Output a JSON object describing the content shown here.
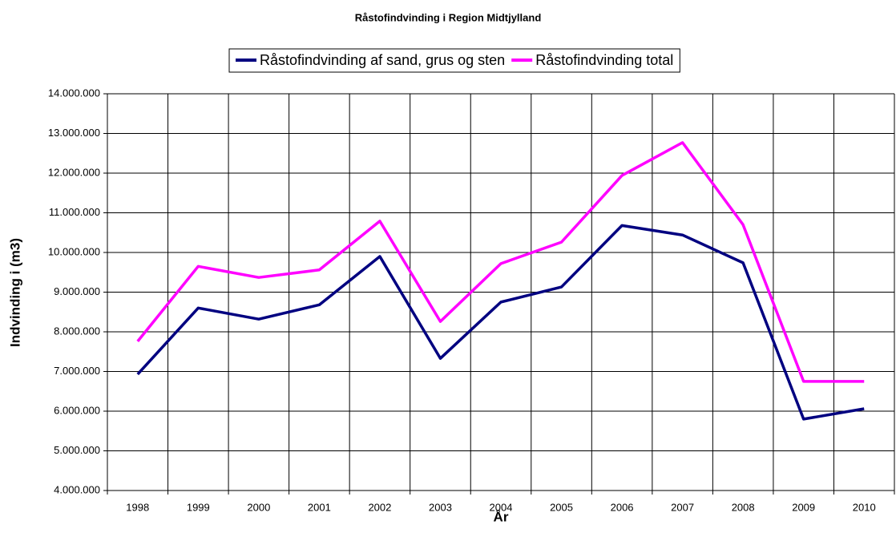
{
  "chart_data": {
    "type": "line",
    "title": "Råstofindvinding  i Region Midtjylland",
    "x_label": "År",
    "y_label": "Indvinding i (m3)",
    "categories": [
      "1998",
      "1999",
      "2000",
      "2001",
      "2002",
      "2003",
      "2004",
      "2005",
      "2006",
      "2007",
      "2008",
      "2009",
      "2010"
    ],
    "series": [
      {
        "name": "Råstofindvinding af sand, grus og sten",
        "color": "#000080",
        "values": [
          6930000,
          8600000,
          8320000,
          8680000,
          9900000,
          7330000,
          8750000,
          9130000,
          10680000,
          10440000,
          9740000,
          5800000,
          6060000
        ]
      },
      {
        "name": "Råstofindvinding total",
        "color": "#ff00ff",
        "values": [
          7760000,
          9650000,
          9370000,
          9560000,
          10790000,
          8260000,
          9720000,
          10260000,
          11940000,
          12770000,
          10700000,
          6750000,
          6750000
        ]
      }
    ],
    "ylim": [
      4000000,
      14000000
    ],
    "yticks": [
      {
        "value": 4000000,
        "label": "4.000.000"
      },
      {
        "value": 5000000,
        "label": "5.000.000"
      },
      {
        "value": 6000000,
        "label": "6.000.000"
      },
      {
        "value": 7000000,
        "label": "7.000.000"
      },
      {
        "value": 8000000,
        "label": "8.000.000"
      },
      {
        "value": 9000000,
        "label": "9.000.000"
      },
      {
        "value": 10000000,
        "label": "10.000.000"
      },
      {
        "value": 11000000,
        "label": "11.000.000"
      },
      {
        "value": 12000000,
        "label": "12.000.000"
      },
      {
        "value": 13000000,
        "label": "13.000.000"
      },
      {
        "value": 14000000,
        "label": "14.000.000"
      }
    ],
    "grid": true,
    "legend": "top"
  }
}
